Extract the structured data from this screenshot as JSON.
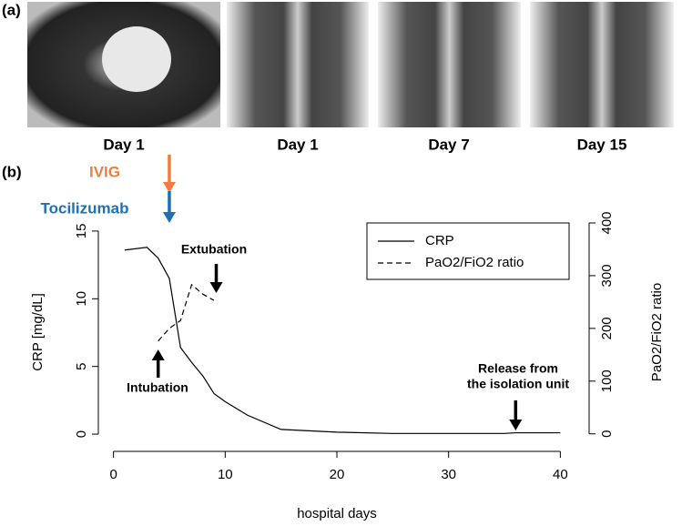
{
  "panel_a": {
    "label": "(a)",
    "captions": [
      "Day 1",
      "Day 1",
      "Day 7",
      "Day 15"
    ]
  },
  "panel_b": {
    "label": "(b)"
  },
  "chart_data": {
    "type": "line",
    "xlabel": "hospital days",
    "ylabel": "CRP [mg/dL]",
    "y2label": "PaO2/FiO2 ratio",
    "xlim": [
      -1.6,
      41.6
    ],
    "xticks": [
      0,
      10,
      20,
      30,
      40
    ],
    "ylim": [
      -0.6,
      15.6
    ],
    "yticks": [
      0,
      5,
      10,
      15
    ],
    "y2lim": [
      -16,
      400
    ],
    "y2ticks": [
      0,
      100,
      200,
      300,
      400
    ],
    "legend": "top-right",
    "series": [
      {
        "name": "CRP",
        "color": "#000000",
        "linestyle": "solid",
        "x": [
          1,
          3,
          4,
          5,
          6,
          7,
          8,
          9,
          10,
          12,
          15,
          20,
          25,
          30,
          35,
          36,
          40
        ],
        "values": [
          13.6,
          13.8,
          13,
          11.5,
          6.4,
          5.3,
          4.3,
          3,
          2.4,
          1.4,
          0.35,
          0.15,
          0.05,
          0.05,
          0.05,
          0.1,
          0.1
        ]
      },
      {
        "name": "PaO2/FiO2 ratio",
        "color": "#000000",
        "linestyle": "dashed",
        "axis": "y2",
        "x": [
          4,
          5,
          6,
          7,
          8,
          9
        ],
        "values": [
          176,
          200,
          215,
          283,
          265,
          253
        ]
      }
    ],
    "annotations": [
      {
        "lines": [
          "IVIG"
        ],
        "x": 5,
        "color": "#f07d3c",
        "direction": "down"
      },
      {
        "lines": [
          "Tocilizumab"
        ],
        "x": 5,
        "color": "#1f6fb5",
        "direction": "down"
      },
      {
        "lines": [
          "Extubation"
        ],
        "x": 9.2,
        "color": "#000000",
        "direction": "down"
      },
      {
        "lines": [
          "Intubation"
        ],
        "x": 4,
        "color": "#000000",
        "direction": "up"
      },
      {
        "lines": [
          "Release from",
          "the isolation unit"
        ],
        "x": 36,
        "color": "#000000",
        "direction": "down"
      }
    ]
  }
}
